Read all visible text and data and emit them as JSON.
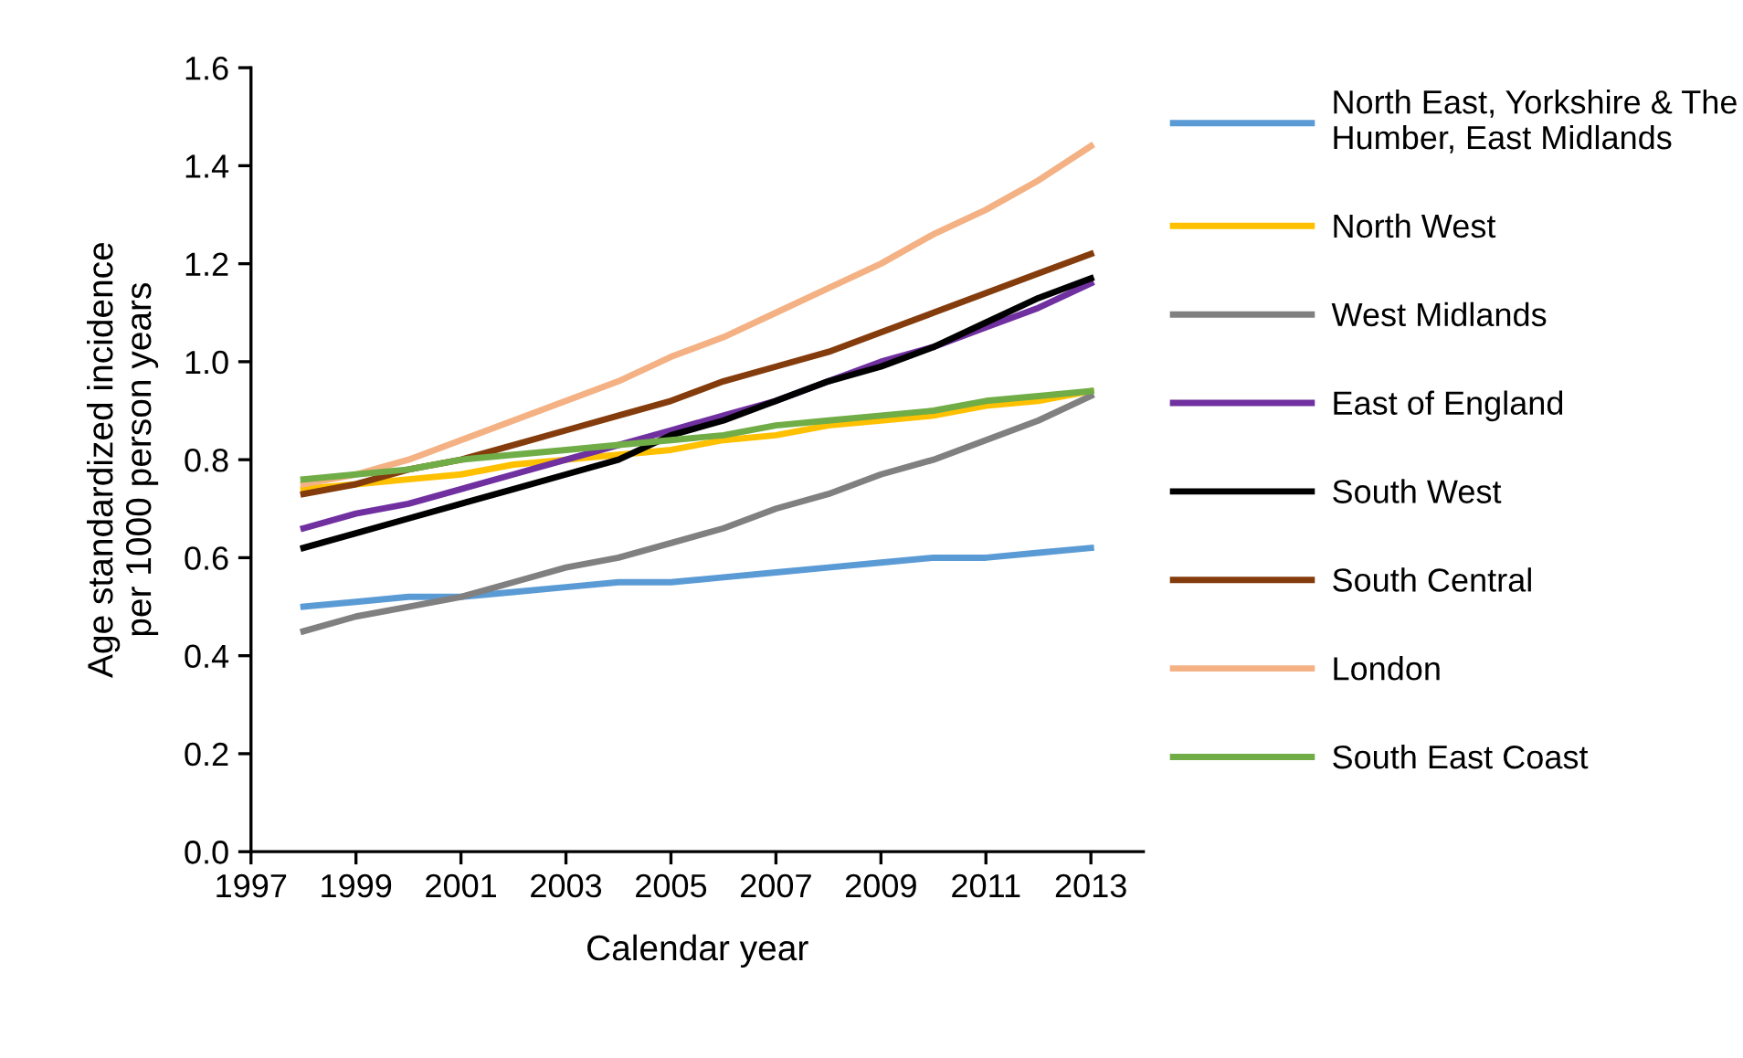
{
  "chart_data": {
    "type": "line",
    "xlabel": "Calendar year",
    "ylabel": "Age standardized incidence\nper 1000 person years",
    "x": [
      1998,
      1999,
      2000,
      2001,
      2002,
      2003,
      2004,
      2005,
      2006,
      2007,
      2008,
      2009,
      2010,
      2011,
      2012,
      2013
    ],
    "xlim": [
      1997,
      2014
    ],
    "xticks": [
      1997,
      1999,
      2001,
      2003,
      2005,
      2007,
      2009,
      2011,
      2013
    ],
    "ylim": [
      0,
      1.6
    ],
    "yticks": [
      {
        "value": 0,
        "label": "0.0"
      },
      {
        "value": 0.2,
        "label": "0.2"
      },
      {
        "value": 0.4,
        "label": "0.4"
      },
      {
        "value": 0.6,
        "label": "0.6"
      },
      {
        "value": 0.8,
        "label": "0.8"
      },
      {
        "value": 1.0,
        "label": "1.0"
      },
      {
        "value": 1.2,
        "label": "1.2"
      },
      {
        "value": 1.4,
        "label": "1.4"
      },
      {
        "value": 1.6,
        "label": "1.6"
      }
    ],
    "grid": false,
    "legend": "right",
    "marker": "none",
    "line_style": "solid",
    "series": [
      {
        "name": "North East, Yorkshire & The\nHumber, East Midlands",
        "color": "#5b9bd5",
        "values": [
          0.5,
          0.51,
          0.52,
          0.52,
          0.53,
          0.54,
          0.55,
          0.55,
          0.56,
          0.57,
          0.58,
          0.59,
          0.6,
          0.6,
          0.61,
          0.62
        ]
      },
      {
        "name": "North West",
        "color": "#ffc000",
        "values": [
          0.74,
          0.75,
          0.76,
          0.77,
          0.79,
          0.8,
          0.81,
          0.82,
          0.84,
          0.85,
          0.87,
          0.88,
          0.89,
          0.91,
          0.92,
          0.94
        ]
      },
      {
        "name": "West Midlands",
        "color": "#808080",
        "values": [
          0.45,
          0.48,
          0.5,
          0.52,
          0.55,
          0.58,
          0.6,
          0.63,
          0.66,
          0.7,
          0.73,
          0.77,
          0.8,
          0.84,
          0.88,
          0.93
        ]
      },
      {
        "name": "East of England",
        "color": "#7030a0",
        "values": [
          0.66,
          0.69,
          0.71,
          0.74,
          0.77,
          0.8,
          0.83,
          0.86,
          0.89,
          0.92,
          0.96,
          1.0,
          1.03,
          1.07,
          1.11,
          1.16
        ]
      },
      {
        "name": "South West",
        "color": "#000000",
        "values": [
          0.62,
          0.65,
          0.68,
          0.71,
          0.74,
          0.77,
          0.8,
          0.85,
          0.88,
          0.92,
          0.96,
          0.99,
          1.03,
          1.08,
          1.13,
          1.17
        ]
      },
      {
        "name": "South Central",
        "color": "#843c0c",
        "values": [
          0.73,
          0.75,
          0.78,
          0.8,
          0.83,
          0.86,
          0.89,
          0.92,
          0.96,
          0.99,
          1.02,
          1.06,
          1.1,
          1.14,
          1.18,
          1.22
        ]
      },
      {
        "name": "London",
        "color": "#f4b183",
        "values": [
          0.75,
          0.77,
          0.8,
          0.84,
          0.88,
          0.92,
          0.96,
          1.01,
          1.05,
          1.1,
          1.15,
          1.2,
          1.26,
          1.31,
          1.37,
          1.44
        ]
      },
      {
        "name": "South East Coast",
        "color": "#70ad47",
        "values": [
          0.76,
          0.77,
          0.78,
          0.8,
          0.81,
          0.82,
          0.83,
          0.84,
          0.85,
          0.87,
          0.88,
          0.89,
          0.9,
          0.92,
          0.93,
          0.94
        ]
      }
    ]
  }
}
